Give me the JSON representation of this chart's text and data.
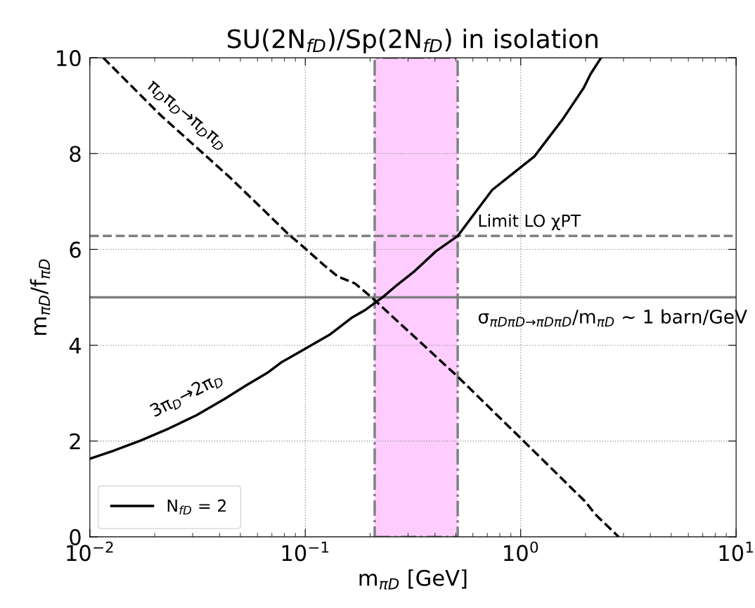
{
  "chart_data": {
    "type": "line",
    "title": "SU(2N$_{fD}$)/Sp(2N$_{fD}$) in isolation",
    "xlabel": "m$_{πD}$ [GeV]",
    "ylabel": "m$_{πD}$/f$_{πD}$",
    "log": "x",
    "xlim": [
      0.01,
      10
    ],
    "ylim": [
      0,
      10
    ],
    "xticks": [
      {
        "value": 0.01,
        "label": "10$^{−2}$"
      },
      {
        "value": 0.1,
        "label": "10$^{−1}$"
      },
      {
        "value": 1,
        "label": "10$^{0}$"
      },
      {
        "value": 10,
        "label": "10$^{1}$"
      }
    ],
    "yticks": [
      0,
      2,
      4,
      6,
      8,
      10
    ],
    "grid": true,
    "legend": "bottom left",
    "series": [
      {
        "name": "N$_{fD}$ = 2",
        "color": "#000000",
        "line_style": "solid",
        "x": [
          0.01,
          0.01272,
          0.01718,
          0.0232,
          0.0313,
          0.0423,
          0.0531,
          0.0665,
          0.0773,
          0.0968,
          0.1308,
          0.1638,
          0.1905,
          0.2298,
          0.2672,
          0.3224,
          0.404,
          0.5098,
          0.737,
          1.157,
          1.563,
          1.96,
          2.11,
          2.36
        ],
        "values": [
          1.63,
          1.79,
          2.01,
          2.26,
          2.54,
          2.88,
          3.16,
          3.42,
          3.64,
          3.89,
          4.23,
          4.57,
          4.74,
          5.01,
          5.26,
          5.55,
          5.96,
          6.28,
          7.24,
          7.94,
          8.71,
          9.37,
          9.66,
          10.0
        ]
      },
      {
        "color": "#000000",
        "line_style": "dashed",
        "x": [
          0.01154,
          0.0212,
          0.045,
          0.0839,
          0.0976,
          0.1222,
          0.142,
          0.17,
          0.202,
          0.506,
          1.01,
          2.0,
          2.21,
          2.85
        ],
        "values": [
          10.0,
          8.81,
          7.49,
          6.31,
          6.06,
          5.67,
          5.43,
          5.29,
          5.01,
          3.36,
          2.04,
          0.73,
          0.48,
          0.0
        ]
      }
    ],
    "ref_lines": [
      {
        "axis": "y",
        "value": 6.28,
        "label": "Limit LO χPT",
        "color": "#808080",
        "line_style": "dashed"
      },
      {
        "axis": "y",
        "value": 5,
        "label": "σ$_{πDπD→πDπD}$/m$_{πD}$ ∼ 1 barn/GeV",
        "color": "#808080",
        "line_style": "solid"
      }
    ],
    "bands": [
      {
        "axis": "x",
        "from": 0.21,
        "to": 0.51,
        "color": "#ffccff"
      }
    ],
    "annotations": [
      "π$_{D}$π$_{D}$→π$_{D}$π$_{D}$",
      "3π$_{D}$→2π$_{D}$"
    ]
  }
}
